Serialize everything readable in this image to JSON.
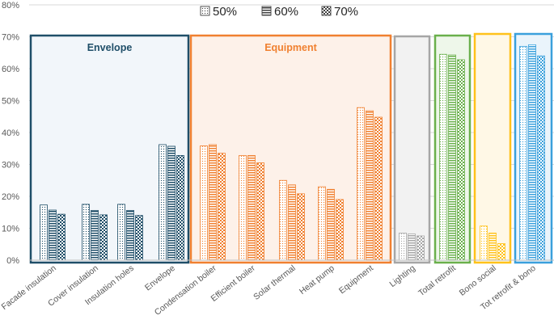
{
  "chart_data": {
    "type": "bar",
    "title": "",
    "xlabel": "",
    "ylabel": "",
    "ylim": [
      0,
      80
    ],
    "yticks": [
      0,
      10,
      20,
      30,
      40,
      50,
      60,
      70,
      80
    ],
    "grid": true,
    "legend_position": "top-center",
    "categories": [
      "Facade insulation",
      "Cover insulation",
      "Insulation holes",
      "Envelope",
      "Condensation boiler",
      "Efficient boiler",
      "Solar thermal",
      "Heat pump",
      "Equipment",
      "Lighting",
      "Total retrofit",
      "Bono social",
      "Tot retrofit & bono"
    ],
    "series": [
      {
        "name": "50%",
        "pattern": "dots",
        "values": [
          17.3,
          17.5,
          17.5,
          36.2,
          35.8,
          32.8,
          25.0,
          23.0,
          47.8,
          8.5,
          64.5,
          10.7,
          67.0
        ]
      },
      {
        "name": "60%",
        "pattern": "stripes",
        "values": [
          15.7,
          15.6,
          15.6,
          35.7,
          36.2,
          32.8,
          23.6,
          22.2,
          46.8,
          8.2,
          64.3,
          8.5,
          67.5
        ]
      },
      {
        "name": "70%",
        "pattern": "checker",
        "values": [
          14.4,
          14.2,
          14.0,
          32.8,
          33.5,
          30.5,
          20.8,
          19.0,
          44.8,
          7.6,
          62.8,
          5.2,
          64.0
        ]
      }
    ],
    "groups": [
      {
        "label": "Envelope",
        "color": "#1F4E68",
        "fill": "#F2F6FA",
        "categories": [
          0,
          1,
          2,
          3
        ]
      },
      {
        "label": "Equipment",
        "color": "#F08030",
        "fill": "#FDF1E9",
        "categories": [
          4,
          5,
          6,
          7,
          8
        ]
      },
      {
        "label": "",
        "color": "#A6A6A6",
        "fill": "#F2F2F2",
        "categories": [
          9
        ]
      },
      {
        "label": "",
        "color": "#6AB04C",
        "fill": "#EEF7EA",
        "categories": [
          10
        ]
      },
      {
        "label": "",
        "color": "#FFC21A",
        "fill": "#FFF8E6",
        "categories": [
          11
        ]
      },
      {
        "label": "",
        "color": "#3AA0DC",
        "fill": "#EAF4FB",
        "categories": [
          12
        ]
      }
    ],
    "legend": [
      "50%",
      "60%",
      "70%"
    ]
  }
}
